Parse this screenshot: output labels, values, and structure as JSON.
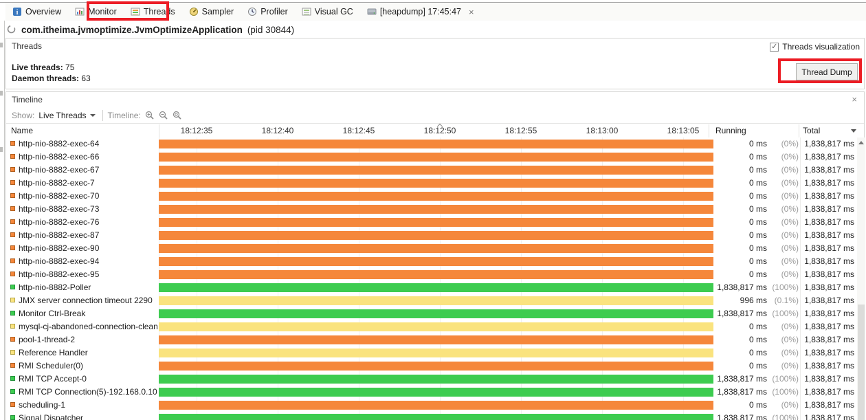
{
  "tabs": [
    {
      "label": "Overview",
      "icon": "overview-icon"
    },
    {
      "label": "Monitor",
      "icon": "monitor-icon"
    },
    {
      "label": "Threads",
      "icon": "threads-icon",
      "active": true
    },
    {
      "label": "Sampler",
      "icon": "sampler-icon"
    },
    {
      "label": "Profiler",
      "icon": "profiler-icon"
    },
    {
      "label": "Visual GC",
      "icon": "visualgc-icon"
    },
    {
      "label": "[heapdump] 17:45:47",
      "icon": "heapdump-icon",
      "close": "×"
    }
  ],
  "app": {
    "title": "com.itheima.jvmoptimize.JvmOptimizeApplication",
    "pid": "(pid 30844)"
  },
  "threads_panel": {
    "title": "Threads",
    "live_label": "Live threads:",
    "live_value": "75",
    "daemon_label": "Daemon threads:",
    "daemon_value": "63",
    "visualization_label": "Threads visualization",
    "visualization_checked": "✓",
    "thread_dump_label": "Thread Dump"
  },
  "timeline_panel": {
    "title": "Timeline",
    "close": "×",
    "show_label": "Show:",
    "show_value": "Live Threads",
    "timeline_label": "Timeline:"
  },
  "table": {
    "name_header": "Name",
    "running_header": "Running",
    "total_header": "Total",
    "ticks": [
      "18:12:35",
      "18:12:40",
      "18:12:45",
      "18:12:50",
      "18:12:55",
      "18:13:00",
      "18:13:05"
    ],
    "caret_tick_index": 3
  },
  "state_colors": {
    "park": {
      "fill": "#F5873B",
      "edge": "#AE5E1E"
    },
    "running": {
      "fill": "#3DCC50",
      "edge": "#22913A"
    },
    "wait": {
      "fill": "#FAE37E",
      "edge": "#B3A344"
    }
  },
  "annotation_color": "#EC1C24",
  "threads": [
    {
      "name": "http-nio-8882-exec-64",
      "state": "park",
      "running": "0 ms",
      "pct": "(0%)",
      "total": "1,838,817 ms"
    },
    {
      "name": "http-nio-8882-exec-66",
      "state": "park",
      "running": "0 ms",
      "pct": "(0%)",
      "total": "1,838,817 ms"
    },
    {
      "name": "http-nio-8882-exec-67",
      "state": "park",
      "running": "0 ms",
      "pct": "(0%)",
      "total": "1,838,817 ms"
    },
    {
      "name": "http-nio-8882-exec-7",
      "state": "park",
      "running": "0 ms",
      "pct": "(0%)",
      "total": "1,838,817 ms"
    },
    {
      "name": "http-nio-8882-exec-70",
      "state": "park",
      "running": "0 ms",
      "pct": "(0%)",
      "total": "1,838,817 ms"
    },
    {
      "name": "http-nio-8882-exec-73",
      "state": "park",
      "running": "0 ms",
      "pct": "(0%)",
      "total": "1,838,817 ms"
    },
    {
      "name": "http-nio-8882-exec-76",
      "state": "park",
      "running": "0 ms",
      "pct": "(0%)",
      "total": "1,838,817 ms"
    },
    {
      "name": "http-nio-8882-exec-87",
      "state": "park",
      "running": "0 ms",
      "pct": "(0%)",
      "total": "1,838,817 ms"
    },
    {
      "name": "http-nio-8882-exec-90",
      "state": "park",
      "running": "0 ms",
      "pct": "(0%)",
      "total": "1,838,817 ms"
    },
    {
      "name": "http-nio-8882-exec-94",
      "state": "park",
      "running": "0 ms",
      "pct": "(0%)",
      "total": "1,838,817 ms"
    },
    {
      "name": "http-nio-8882-exec-95",
      "state": "park",
      "running": "0 ms",
      "pct": "(0%)",
      "total": "1,838,817 ms"
    },
    {
      "name": "http-nio-8882-Poller",
      "state": "running",
      "running": "1,838,817 ms",
      "pct": "(100%)",
      "total": "1,838,817 ms"
    },
    {
      "name": "JMX server connection timeout 2290",
      "state": "wait",
      "running": "996 ms",
      "pct": "(0.1%)",
      "total": "1,838,817 ms"
    },
    {
      "name": "Monitor Ctrl-Break",
      "state": "running",
      "running": "1,838,817 ms",
      "pct": "(100%)",
      "total": "1,838,817 ms"
    },
    {
      "name": "mysql-cj-abandoned-connection-cleanup",
      "state": "wait",
      "running": "0 ms",
      "pct": "(0%)",
      "total": "1,838,817 ms"
    },
    {
      "name": "pool-1-thread-2",
      "state": "park",
      "running": "0 ms",
      "pct": "(0%)",
      "total": "1,838,817 ms"
    },
    {
      "name": "Reference Handler",
      "state": "wait",
      "running": "0 ms",
      "pct": "(0%)",
      "total": "1,838,817 ms"
    },
    {
      "name": "RMI Scheduler(0)",
      "state": "park",
      "running": "0 ms",
      "pct": "(0%)",
      "total": "1,838,817 ms"
    },
    {
      "name": "RMI TCP Accept-0",
      "state": "running",
      "running": "1,838,817 ms",
      "pct": "(100%)",
      "total": "1,838,817 ms"
    },
    {
      "name": "RMI TCP Connection(5)-192.168.0.10",
      "state": "running",
      "running": "1,838,817 ms",
      "pct": "(100%)",
      "total": "1,838,817 ms"
    },
    {
      "name": "scheduling-1",
      "state": "park",
      "running": "0 ms",
      "pct": "(0%)",
      "total": "1,838,817 ms"
    },
    {
      "name": "Signal Dispatcher",
      "state": "running",
      "running": "1,838,817 ms",
      "pct": "(100%)",
      "total": "1,838,817 ms"
    }
  ]
}
